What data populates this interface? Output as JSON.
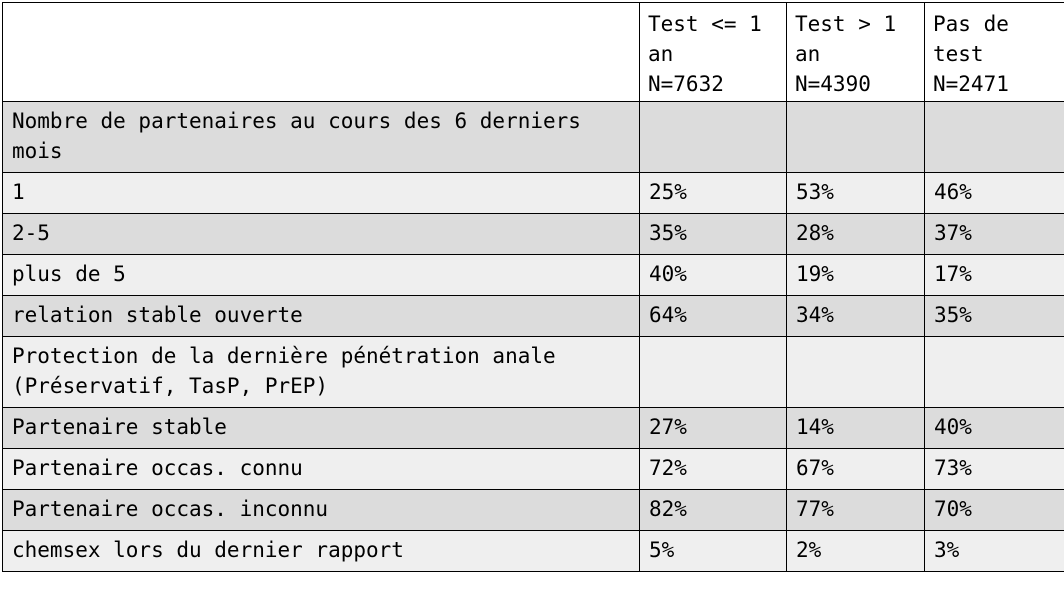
{
  "colors": {
    "row_shade_dark": "#dcdcdc",
    "row_shade_light": "#efefef",
    "header_background": "#ffffff",
    "border": "#000000"
  },
  "table": {
    "headers": [
      "",
      "Test <= 1\nan\nN=7632",
      "Test > 1\nan\nN=4390",
      "Pas de\ntest\nN=2471"
    ],
    "rows": [
      {
        "label": "Nombre de partenaires au cours des 6 derniers\nmois",
        "values": [
          "",
          "",
          ""
        ]
      },
      {
        "label": "1",
        "values": [
          "25%",
          "53%",
          "46%"
        ]
      },
      {
        "label": "2-5",
        "values": [
          "35%",
          "28%",
          "37%"
        ]
      },
      {
        "label": "plus de 5",
        "values": [
          "40%",
          "19%",
          "17%"
        ]
      },
      {
        "label": "relation stable ouverte",
        "values": [
          "64%",
          "34%",
          "35%"
        ]
      },
      {
        "label": "Protection de la dernière pénétration anale\n(Préservatif, TasP, PrEP)",
        "values": [
          "",
          "",
          ""
        ]
      },
      {
        "label": "Partenaire stable",
        "values": [
          "27%",
          "14%",
          "40%"
        ]
      },
      {
        "label": "Partenaire occas. connu",
        "values": [
          "72%",
          "67%",
          "73%"
        ]
      },
      {
        "label": "Partenaire occas. inconnu",
        "values": [
          "82%",
          "77%",
          "70%"
        ]
      },
      {
        "label": "chemsex lors du dernier rapport",
        "values": [
          "5%",
          "2%",
          "3%"
        ]
      }
    ]
  }
}
